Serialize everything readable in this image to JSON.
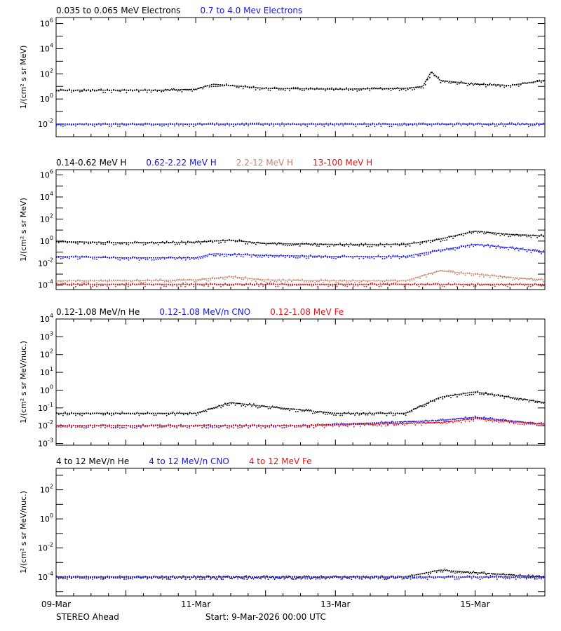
{
  "colors": {
    "black": "#000000",
    "blue": "#1414f0",
    "tan": "#c8826e",
    "red": "#e61414"
  },
  "footer": {
    "spacecraft": "STEREO Ahead",
    "start_text": "Start:  9-Mar-2026 00:00 UTC"
  },
  "chart_data": [
    {
      "type": "scatter",
      "title": "",
      "ylabel": "1/(cm² s sr MeV)",
      "yscale": "log",
      "ylim": [
        0.001,
        3000000
      ],
      "y_ticks": [
        {
          "value": 0.01,
          "mant": "10",
          "exp": "-2"
        },
        {
          "value": 1,
          "mant": "10",
          "exp": "0"
        },
        {
          "value": 100,
          "mant": "10",
          "exp": "2"
        },
        {
          "value": 10000,
          "mant": "10",
          "exp": "4"
        },
        {
          "value": 1000000,
          "mant": "10",
          "exp": "6"
        }
      ],
      "x_tick_labels": [],
      "series": [
        {
          "name": "0.035 to 0.065 MeV Electrons",
          "color": "#000000",
          "x": [
            "09-Mar 00:00",
            "10-Mar 00:00",
            "10-Mar 12:00",
            "11-Mar 00:00",
            "11-Mar 06:00",
            "12-Mar 00:00",
            "13-Mar 00:00",
            "14-Mar 00:00",
            "14-Mar 06:00",
            "14-Mar 09:00",
            "14-Mar 12:00",
            "15-Mar 00:00",
            "15-Mar 12:00",
            "16-Mar 00:00"
          ],
          "y": [
            5,
            5,
            5,
            6,
            15,
            7,
            6,
            7,
            10,
            150,
            30,
            15,
            12,
            30
          ]
        },
        {
          "name": "0.7 to 4.0 Mev Electrons",
          "color": "#1414f0",
          "x": [
            "09-Mar 00:00",
            "12-Mar 12:00",
            "16-Mar 00:00"
          ],
          "y": [
            0.01,
            0.01,
            0.01
          ]
        }
      ]
    },
    {
      "type": "scatter",
      "title": "",
      "ylabel": "1/(cm² s sr MeV)",
      "yscale": "log",
      "ylim": [
        4e-05,
        3000000
      ],
      "y_ticks": [
        {
          "value": 0.0001,
          "mant": "10",
          "exp": "-4"
        },
        {
          "value": 0.01,
          "mant": "10",
          "exp": "-2"
        },
        {
          "value": 1,
          "mant": "10",
          "exp": "0"
        },
        {
          "value": 100,
          "mant": "10",
          "exp": "2"
        },
        {
          "value": 10000,
          "mant": "10",
          "exp": "4"
        },
        {
          "value": 1000000,
          "mant": "10",
          "exp": "6"
        }
      ],
      "x_tick_labels": [],
      "series": [
        {
          "name": "0.14-0.62 MeV H",
          "color": "#000000",
          "x": [
            "09-Mar 00:00",
            "10-Mar 00:00",
            "11-Mar 00:00",
            "11-Mar 12:00",
            "12-Mar 00:00",
            "13-Mar 00:00",
            "14-Mar 00:00",
            "14-Mar 12:00",
            "15-Mar 00:00",
            "15-Mar 12:00",
            "16-Mar 00:00"
          ],
          "y": [
            0.9,
            0.7,
            0.8,
            1.2,
            0.6,
            0.5,
            0.5,
            1.5,
            8,
            4,
            3
          ]
        },
        {
          "name": "0.62-2.22 MeV H",
          "color": "#1414f0",
          "x": [
            "09-Mar 00:00",
            "10-Mar 00:00",
            "11-Mar 00:00",
            "11-Mar 06:00",
            "12-Mar 00:00",
            "13-Mar 00:00",
            "14-Mar 00:00",
            "14-Mar 12:00",
            "15-Mar 00:00",
            "15-Mar 12:00",
            "16-Mar 00:00"
          ],
          "y": [
            0.04,
            0.03,
            0.03,
            0.07,
            0.05,
            0.04,
            0.04,
            0.15,
            0.5,
            0.25,
            0.1
          ]
        },
        {
          "name": "2.2-12 MeV H",
          "color": "#c8826e",
          "x": [
            "09-Mar 00:00",
            "10-Mar 00:00",
            "11-Mar 00:00",
            "11-Mar 12:00",
            "12-Mar 00:00",
            "13-Mar 00:00",
            "14-Mar 00:00",
            "14-Mar 12:00",
            "15-Mar 00:00",
            "15-Mar 12:00",
            "16-Mar 00:00"
          ],
          "y": [
            0.00025,
            0.00025,
            0.0003,
            0.0006,
            0.0003,
            0.00025,
            0.00025,
            0.002,
            0.001,
            0.0005,
            0.0003
          ]
        },
        {
          "name": "13-100 MeV H",
          "color": "#e61414",
          "x": [
            "09-Mar 00:00",
            "12-Mar 12:00",
            "16-Mar 00:00"
          ],
          "y": [
            0.00012,
            0.00012,
            0.00012
          ]
        }
      ]
    },
    {
      "type": "scatter",
      "title": "",
      "ylabel": "1/(cm² s sr MeV/nuc.)",
      "yscale": "log",
      "ylim": [
        0.0008,
        10000
      ],
      "y_ticks": [
        {
          "value": 0.001,
          "mant": "10",
          "exp": "-3"
        },
        {
          "value": 0.01,
          "mant": "10",
          "exp": "-2"
        },
        {
          "value": 0.1,
          "mant": "10",
          "exp": "-1"
        },
        {
          "value": 1,
          "mant": "10",
          "exp": "0"
        },
        {
          "value": 10,
          "mant": "10",
          "exp": "1"
        },
        {
          "value": 100,
          "mant": "10",
          "exp": "2"
        },
        {
          "value": 1000,
          "mant": "10",
          "exp": "3"
        },
        {
          "value": 10000,
          "mant": "10",
          "exp": "4"
        }
      ],
      "x_tick_labels": [],
      "series": [
        {
          "name": "0.12-1.08 MeV/n He",
          "color": "#000000",
          "x": [
            "09-Mar 00:00",
            "10-Mar 00:00",
            "11-Mar 00:00",
            "11-Mar 12:00",
            "12-Mar 00:00",
            "13-Mar 00:00",
            "14-Mar 00:00",
            "14-Mar 12:00",
            "15-Mar 00:00",
            "15-Mar 12:00",
            "16-Mar 00:00"
          ],
          "y": [
            0.05,
            0.05,
            0.05,
            0.2,
            0.12,
            0.05,
            0.05,
            0.4,
            0.8,
            0.4,
            0.2
          ]
        },
        {
          "name": "0.12-1.08 MeV/n CNO",
          "color": "#1414f0",
          "x": [
            "09-Mar 00:00",
            "12-Mar 12:00",
            "14-Mar 12:00",
            "15-Mar 00:00",
            "16-Mar 00:00"
          ],
          "y": [
            0.01,
            0.01,
            0.02,
            0.03,
            0.012
          ]
        },
        {
          "name": "0.12-1.08 MeV Fe",
          "color": "#e61414",
          "x": [
            "09-Mar 00:00",
            "12-Mar 12:00",
            "14-Mar 12:00",
            "15-Mar 00:00",
            "16-Mar 00:00"
          ],
          "y": [
            0.01,
            0.01,
            0.015,
            0.025,
            0.012
          ]
        }
      ]
    },
    {
      "type": "scatter",
      "title": "",
      "ylabel": "1/(cm² s sr MeV/nuc.)",
      "yscale": "log",
      "ylim": [
        5e-06,
        3000
      ],
      "y_ticks": [
        {
          "value": 0.0001,
          "mant": "10",
          "exp": "-4"
        },
        {
          "value": 0.01,
          "mant": "10",
          "exp": "-2"
        },
        {
          "value": 1,
          "mant": "10",
          "exp": "0"
        },
        {
          "value": 100,
          "mant": "10",
          "exp": "2"
        }
      ],
      "x_tick_labels": [
        "09-Mar",
        "11-Mar",
        "13-Mar",
        "15-Mar"
      ],
      "series": [
        {
          "name": "4 to 12 MeV/n He",
          "color": "#000000",
          "x": [
            "09-Mar 00:00",
            "10-Mar 00:00",
            "11-Mar 00:00",
            "12-Mar 00:00",
            "13-Mar 00:00",
            "14-Mar 00:00",
            "14-Mar 12:00",
            "15-Mar 00:00",
            "16-Mar 00:00"
          ],
          "y": [
            0.0001,
            0.0001,
            0.0001,
            0.0001,
            0.0001,
            0.0001,
            0.0003,
            0.0002,
            0.0001
          ]
        },
        {
          "name": "4 to 12 MeV/n CNO",
          "color": "#1414f0",
          "x": [
            "09-Mar 00:00",
            "12-Mar 12:00",
            "16-Mar 00:00"
          ],
          "y": [
            0.0001,
            0.0001,
            0.0001
          ]
        },
        {
          "name": "4 to 12 MeV Fe",
          "color": "#e61414",
          "x": [],
          "y": []
        }
      ]
    }
  ]
}
